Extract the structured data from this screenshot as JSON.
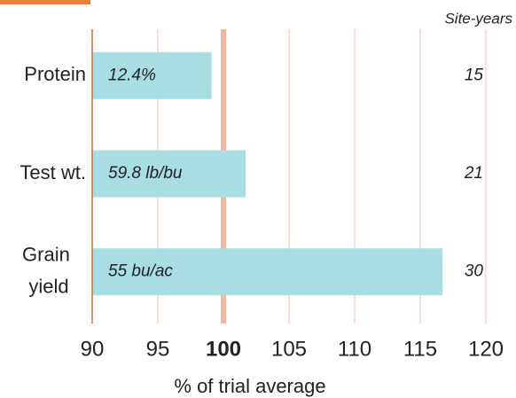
{
  "chart_data": {
    "type": "bar",
    "orientation": "horizontal",
    "categories": [
      "Protein",
      "Test wt.",
      "Grain yield"
    ],
    "values": [
      99.1,
      101.7,
      116.7
    ],
    "bar_labels": [
      "12.4%",
      "59.8 lb/bu",
      "55 bu/ac"
    ],
    "column_title": "Site-years",
    "column_values": [
      15,
      21,
      30
    ],
    "color": "#a8dde3",
    "xlabel": "% of trial average",
    "xlim": [
      90,
      120
    ],
    "xticks": [
      90,
      95,
      100,
      105,
      110,
      115,
      120
    ],
    "reference_line": 100,
    "grid": true
  }
}
